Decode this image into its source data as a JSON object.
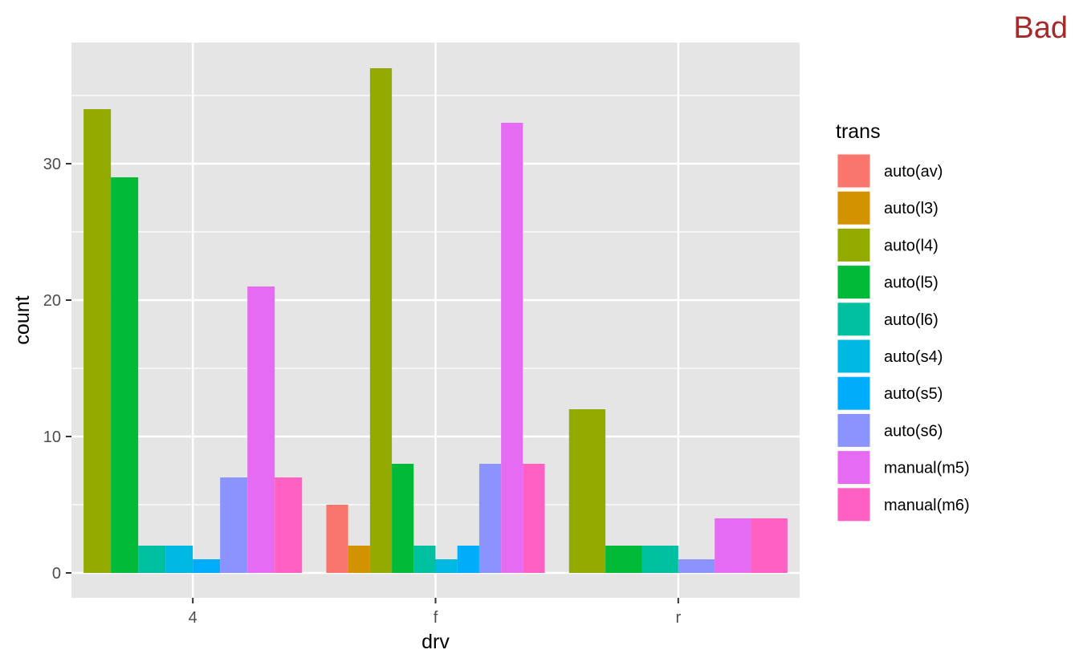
{
  "tag": {
    "text": "Bad",
    "color": "#A52A2A"
  },
  "colors": {
    "panel_bg": "#E5E5E5",
    "grid": "#FFFFFF",
    "text": "#000000",
    "tick_text": "#4D4D4D"
  },
  "chart_data": {
    "type": "bar",
    "position": "dodge",
    "xlabel": "drv",
    "ylabel": "count",
    "categories": [
      "4",
      "f",
      "r"
    ],
    "ylim": [
      0,
      40
    ],
    "yticks": [
      0,
      10,
      20,
      30
    ],
    "legend": {
      "title": "trans",
      "placement": "right",
      "entries": [
        "auto(av)",
        "auto(l3)",
        "auto(l4)",
        "auto(l5)",
        "auto(l6)",
        "auto(s4)",
        "auto(s5)",
        "auto(s6)",
        "manual(m5)",
        "manual(m6)"
      ]
    },
    "series": [
      {
        "name": "auto(av)",
        "color": "#F8766D",
        "values": [
          null,
          5,
          null
        ]
      },
      {
        "name": "auto(l3)",
        "color": "#D39200",
        "values": [
          null,
          2,
          null
        ]
      },
      {
        "name": "auto(l4)",
        "color": "#93AA00",
        "values": [
          34,
          37,
          12
        ]
      },
      {
        "name": "auto(l5)",
        "color": "#00BA38",
        "values": [
          29,
          8,
          2
        ]
      },
      {
        "name": "auto(l6)",
        "color": "#00C19F",
        "values": [
          2,
          2,
          2
        ]
      },
      {
        "name": "auto(s4)",
        "color": "#00B9E3",
        "values": [
          2,
          1,
          null
        ]
      },
      {
        "name": "auto(s5)",
        "color": "#00ADFA",
        "values": [
          1,
          2,
          null
        ]
      },
      {
        "name": "auto(s6)",
        "color": "#8B93FF",
        "values": [
          7,
          8,
          1
        ]
      },
      {
        "name": "manual(m5)",
        "color": "#E66BF3",
        "values": [
          21,
          33,
          4
        ]
      },
      {
        "name": "manual(m6)",
        "color": "#FF61C3",
        "values": [
          7,
          8,
          4
        ]
      }
    ]
  }
}
